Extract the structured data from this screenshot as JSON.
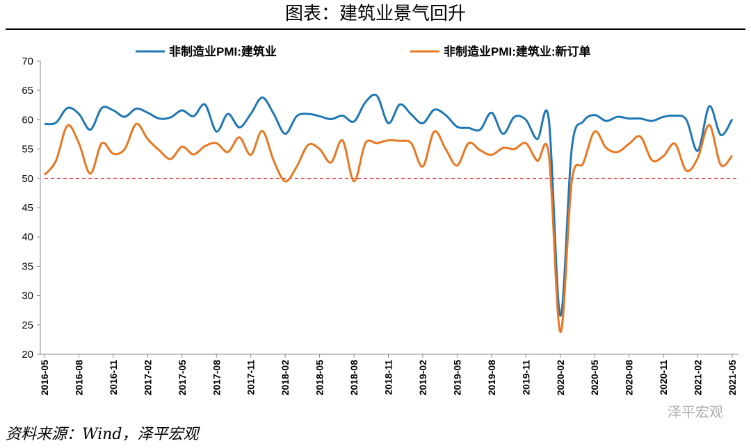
{
  "title": "图表：建筑业景气回升",
  "source": "资料来源：Wind，泽平宏观",
  "watermark": "泽平宏观",
  "chart_data": {
    "type": "line",
    "categories": [
      "2016-05",
      null,
      null,
      "2016-08",
      null,
      null,
      "2016-11",
      null,
      null,
      "2017-02",
      null,
      null,
      "2017-05",
      null,
      null,
      "2017-08",
      null,
      null,
      "2017-11",
      null,
      null,
      "2018-02",
      null,
      null,
      "2018-05",
      null,
      null,
      "2018-08",
      null,
      null,
      "2018-11",
      null,
      null,
      "2019-02",
      null,
      null,
      "2019-05",
      null,
      null,
      "2019-08",
      null,
      null,
      "2019-11",
      null,
      null,
      "2020-02",
      null,
      null,
      "2020-05",
      null,
      null,
      "2020-08",
      null,
      null,
      "2020-11",
      null,
      null,
      "2021-02",
      null,
      null,
      "2021-05"
    ],
    "series": [
      {
        "name": "非制造业PMI:建筑业",
        "color": "#1f77b4",
        "values": [
          59.3,
          59.5,
          62.0,
          61.0,
          58.3,
          62.0,
          61.6,
          60.5,
          61.9,
          61.2,
          60.2,
          60.4,
          61.6,
          60.6,
          62.6,
          58.0,
          61.0,
          58.7,
          61.0,
          63.8,
          61.0,
          57.6,
          60.6,
          61.0,
          60.6,
          60.1,
          60.7,
          59.7,
          63.0,
          64.1,
          59.4,
          62.6,
          60.9,
          59.4,
          61.7,
          60.8,
          58.8,
          58.6,
          58.3,
          61.2,
          57.6,
          60.5,
          60.0,
          56.7,
          60.0,
          26.6,
          55.1,
          59.7,
          60.8,
          59.8,
          60.5,
          60.2,
          60.2,
          59.8,
          60.5,
          60.7,
          60.0,
          54.7,
          62.3,
          57.4,
          60.1
        ]
      },
      {
        "name": "非制造业PMI:建筑业:新订单",
        "color": "#e87722",
        "values": [
          50.6,
          53.0,
          59.0,
          56.0,
          50.8,
          56.0,
          54.2,
          55.0,
          59.3,
          56.7,
          54.8,
          53.3,
          55.4,
          54.1,
          55.5,
          56.0,
          54.5,
          57.0,
          54.0,
          58.1,
          53.0,
          49.5,
          52.0,
          55.7,
          55.0,
          52.7,
          56.5,
          49.5,
          56.0,
          56.0,
          56.5,
          56.4,
          56.0,
          52.0,
          58.0,
          55.0,
          52.2,
          56.0,
          54.8,
          54.0,
          55.2,
          55.0,
          56.0,
          53.0,
          54.0,
          23.8,
          49.5,
          52.6,
          58.0,
          55.2,
          54.5,
          55.9,
          57.1,
          53.1,
          53.8,
          55.9,
          51.3,
          53.5,
          59.1,
          52.3,
          53.9
        ]
      }
    ],
    "ylim": [
      20,
      70
    ],
    "yticks": [
      20,
      25,
      30,
      35,
      40,
      45,
      50,
      55,
      60,
      65,
      70
    ],
    "reference_line": 50,
    "reference_color": "#e02020"
  }
}
